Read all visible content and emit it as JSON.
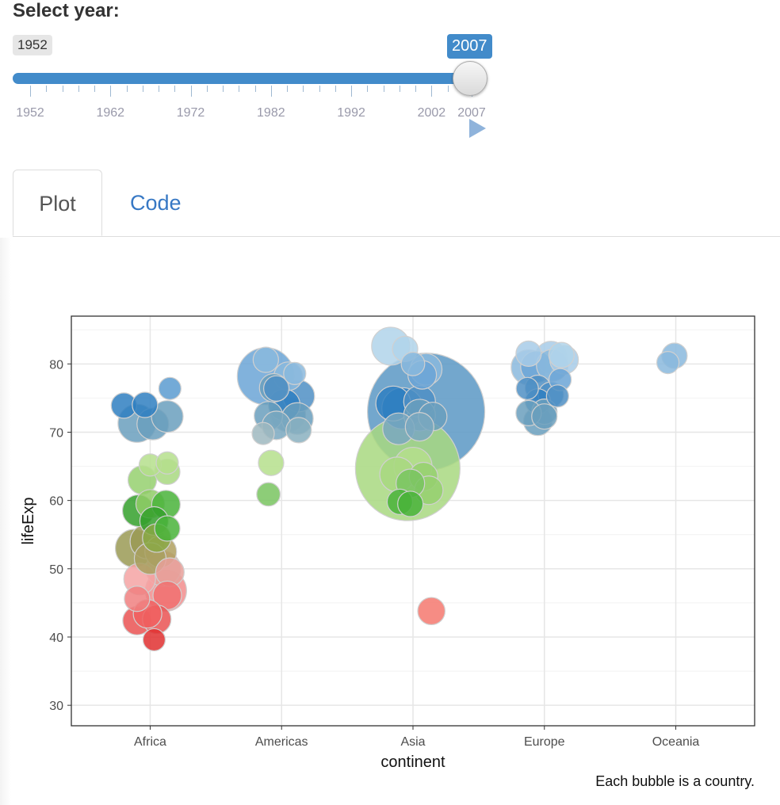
{
  "header": {
    "title": "Select year:"
  },
  "slider": {
    "min_label": "1952",
    "value_label": "2007",
    "value": 2007,
    "min": 1952,
    "max": 2007,
    "tick_labels": [
      "1952",
      "1962",
      "1972",
      "1982",
      "1992",
      "2002",
      "2007"
    ],
    "accent_color": "#428bca",
    "play_icon": "play-icon"
  },
  "tabs": [
    {
      "label": "Plot",
      "active": true
    },
    {
      "label": "Code",
      "active": false
    }
  ],
  "caption": "Each bubble is a country.",
  "chart_data": {
    "type": "scatter",
    "title": "",
    "xlabel": "continent",
    "ylabel": "lifeExp",
    "categories": [
      "Africa",
      "Americas",
      "Asia",
      "Europe",
      "Oceania"
    ],
    "ylim": [
      27,
      87
    ],
    "yticks": [
      30,
      40,
      50,
      60,
      70,
      80
    ],
    "grid": true,
    "legend": "none",
    "points": [
      {
        "c": "Africa",
        "x": -0.2,
        "y": 73.9,
        "s": 0.35,
        "col": "#2f7fc1"
      },
      {
        "c": "Africa",
        "x": -0.04,
        "y": 74,
        "s": 0.35,
        "col": "#2f7fc1"
      },
      {
        "c": "Africa",
        "x": 0.15,
        "y": 76.4,
        "s": 0.3,
        "col": "#5a9bd0"
      },
      {
        "c": "Africa",
        "x": -0.1,
        "y": 71.3,
        "s": 0.55,
        "col": "#6a9fbd"
      },
      {
        "c": "Africa",
        "x": 0.02,
        "y": 71.2,
        "s": 0.45,
        "col": "#6a9fbd"
      },
      {
        "c": "Africa",
        "x": 0.13,
        "y": 72.3,
        "s": 0.45,
        "col": "#6a9fbd"
      },
      {
        "c": "Africa",
        "x": 0,
        "y": 65.2,
        "s": 0.3,
        "col": "#b5df8c"
      },
      {
        "c": "Africa",
        "x": 0.13,
        "y": 65.5,
        "s": 0.3,
        "col": "#b5df8c"
      },
      {
        "c": "Africa",
        "x": -0.06,
        "y": 63,
        "s": 0.4,
        "col": "#95d06e"
      },
      {
        "c": "Africa",
        "x": 0.13,
        "y": 64.2,
        "s": 0.35,
        "col": "#a8d880"
      },
      {
        "c": "Africa",
        "x": 0.0,
        "y": 59.5,
        "s": 0.4,
        "col": "#8fcc66"
      },
      {
        "c": "Africa",
        "x": 0.12,
        "y": 59.4,
        "s": 0.4,
        "col": "#49b33a"
      },
      {
        "c": "Africa",
        "x": -0.09,
        "y": 58.5,
        "s": 0.45,
        "col": "#34a02c"
      },
      {
        "c": "Africa",
        "x": 0.03,
        "y": 57,
        "s": 0.4,
        "col": "#34a02c"
      },
      {
        "c": "Africa",
        "x": 0.13,
        "y": 55.9,
        "s": 0.35,
        "col": "#49b33a"
      },
      {
        "c": "Africa",
        "x": -0.12,
        "y": 53,
        "s": 0.55,
        "col": "#9a9a55"
      },
      {
        "c": "Africa",
        "x": -0.02,
        "y": 54,
        "s": 0.5,
        "col": "#9a9a55"
      },
      {
        "c": "Africa",
        "x": 0.05,
        "y": 54.5,
        "s": 0.4,
        "col": "#8aa845"
      },
      {
        "c": "Africa",
        "x": 0.08,
        "y": 52.5,
        "s": 0.45,
        "col": "#b0a060"
      },
      {
        "c": "Africa",
        "x": 0.1,
        "y": 50,
        "s": 0.5,
        "col": "#e8a09a"
      },
      {
        "c": "Africa",
        "x": 0.15,
        "y": 49.5,
        "s": 0.4,
        "col": "#e8a09a"
      },
      {
        "c": "Africa",
        "x": -0.08,
        "y": 48.5,
        "s": 0.45,
        "col": "#f4a3a3"
      },
      {
        "c": "Africa",
        "x": 0.0,
        "y": 51.5,
        "s": 0.45,
        "col": "#a8a060"
      },
      {
        "c": "Africa",
        "x": 0.12,
        "y": 46.8,
        "s": 0.6,
        "col": "#f28d8d"
      },
      {
        "c": "Africa",
        "x": -0.1,
        "y": 45.6,
        "s": 0.35,
        "col": "#f08080"
      },
      {
        "c": "Africa",
        "x": 0.13,
        "y": 46.1,
        "s": 0.4,
        "col": "#f07070"
      },
      {
        "c": "Africa",
        "x": -0.1,
        "y": 42.4,
        "s": 0.4,
        "col": "#ea5252"
      },
      {
        "c": "Africa",
        "x": 0.05,
        "y": 42.6,
        "s": 0.4,
        "col": "#ea5252"
      },
      {
        "c": "Africa",
        "x": -0.02,
        "y": 43.4,
        "s": 0.4,
        "col": "#f06060"
      },
      {
        "c": "Africa",
        "x": 0.03,
        "y": 39.6,
        "s": 0.3,
        "col": "#e03030"
      },
      {
        "c": "Americas",
        "x": -0.12,
        "y": 80.6,
        "s": 0.35,
        "col": "#8ab8dd"
      },
      {
        "c": "Americas",
        "x": -0.12,
        "y": 78.2,
        "s": 0.85,
        "col": "#6ba5d6"
      },
      {
        "c": "Americas",
        "x": 0.05,
        "y": 78.2,
        "s": 0.4,
        "col": "#8ab8dd"
      },
      {
        "c": "Americas",
        "x": 0.1,
        "y": 78.6,
        "s": 0.3,
        "col": "#8ab8dd"
      },
      {
        "c": "Americas",
        "x": -0.06,
        "y": 76.5,
        "s": 0.4,
        "col": "#6a9fbd"
      },
      {
        "c": "Americas",
        "x": 0.13,
        "y": 75.3,
        "s": 0.45,
        "col": "#4f8fc4"
      },
      {
        "c": "Americas",
        "x": -0.04,
        "y": 76.4,
        "s": 0.35,
        "col": "#4f8fc4"
      },
      {
        "c": "Americas",
        "x": 0.02,
        "y": 74,
        "s": 0.45,
        "col": "#2f7fc1"
      },
      {
        "c": "Americas",
        "x": -0.1,
        "y": 72.4,
        "s": 0.4,
        "col": "#6a9fbd"
      },
      {
        "c": "Americas",
        "x": 0.05,
        "y": 72.6,
        "s": 0.5,
        "col": "#6a9fbd"
      },
      {
        "c": "Americas",
        "x": 0.12,
        "y": 72,
        "s": 0.45,
        "col": "#6a9fbd"
      },
      {
        "c": "Americas",
        "x": -0.04,
        "y": 71,
        "s": 0.4,
        "col": "#7aa8c0"
      },
      {
        "c": "Americas",
        "x": 0.13,
        "y": 70.3,
        "s": 0.35,
        "col": "#8ab0bf"
      },
      {
        "c": "Americas",
        "x": -0.14,
        "y": 69.8,
        "s": 0.3,
        "col": "#9fb8bf"
      },
      {
        "c": "Americas",
        "x": -0.08,
        "y": 65.5,
        "s": 0.35,
        "col": "#b5df8c"
      },
      {
        "c": "Americas",
        "x": -0.1,
        "y": 60.9,
        "s": 0.32,
        "col": "#79c460"
      },
      {
        "c": "Asia",
        "x": -0.17,
        "y": 82.6,
        "s": 0.55,
        "col": "#b0d4ea"
      },
      {
        "c": "Asia",
        "x": -0.06,
        "y": 82.2,
        "s": 0.35,
        "col": "#b0d4ea"
      },
      {
        "c": "Asia",
        "x": 0.0,
        "y": 80,
        "s": 0.32,
        "col": "#8ab8dd"
      },
      {
        "c": "Asia",
        "x": 0.1,
        "y": 79.2,
        "s": 0.45,
        "col": "#8ab8dd"
      },
      {
        "c": "Asia",
        "x": 0.07,
        "y": 78.4,
        "s": 0.4,
        "col": "#6ba5d6"
      },
      {
        "c": "Asia",
        "x": 0.1,
        "y": 73,
        "s": 1.8,
        "col": "#5b98c4"
      },
      {
        "c": "Asia",
        "x": -0.15,
        "y": 74.2,
        "s": 0.5,
        "col": "#2f7fc1"
      },
      {
        "c": "Asia",
        "x": -0.08,
        "y": 73.5,
        "s": 0.6,
        "col": "#2f7fc1"
      },
      {
        "c": "Asia",
        "x": 0.05,
        "y": 74.5,
        "s": 0.45,
        "col": "#4f8fc4"
      },
      {
        "c": "Asia",
        "x": 0.05,
        "y": 72.5,
        "s": 0.45,
        "col": "#6a9fbd"
      },
      {
        "c": "Asia",
        "x": 0.15,
        "y": 72.3,
        "s": 0.4,
        "col": "#6a9fbd"
      },
      {
        "c": "Asia",
        "x": 0.05,
        "y": 70.8,
        "s": 0.4,
        "col": "#7aa8c0"
      },
      {
        "c": "Asia",
        "x": -0.11,
        "y": 70.5,
        "s": 0.45,
        "col": "#7aa8c0"
      },
      {
        "c": "Asia",
        "x": 0.0,
        "y": 65,
        "s": 0.55,
        "col": "#b5df8c"
      },
      {
        "c": "Asia",
        "x": -0.04,
        "y": 64.7,
        "s": 1.6,
        "col": "#a8d880"
      },
      {
        "c": "Asia",
        "x": -0.12,
        "y": 63.8,
        "s": 0.5,
        "col": "#a8d880"
      },
      {
        "c": "Asia",
        "x": 0.08,
        "y": 63.5,
        "s": 0.4,
        "col": "#95d06e"
      },
      {
        "c": "Asia",
        "x": 0.12,
        "y": 61.5,
        "s": 0.4,
        "col": "#95d06e"
      },
      {
        "c": "Asia",
        "x": -0.02,
        "y": 62.5,
        "s": 0.4,
        "col": "#79c460"
      },
      {
        "c": "Asia",
        "x": -0.1,
        "y": 59.8,
        "s": 0.35,
        "col": "#49b33a"
      },
      {
        "c": "Asia",
        "x": -0.02,
        "y": 59.5,
        "s": 0.35,
        "col": "#49b33a"
      },
      {
        "c": "Asia",
        "x": 0.14,
        "y": 43.8,
        "s": 0.38,
        "col": "#f4786e"
      },
      {
        "c": "Europe",
        "x": -0.12,
        "y": 81.5,
        "s": 0.35,
        "col": "#a7cbe7"
      },
      {
        "c": "Europe",
        "x": 0.05,
        "y": 81,
        "s": 0.45,
        "col": "#a7cbe7"
      },
      {
        "c": "Europe",
        "x": 0.13,
        "y": 81.3,
        "s": 0.35,
        "col": "#b0d4ea"
      },
      {
        "c": "Europe",
        "x": 0.15,
        "y": 80.6,
        "s": 0.4,
        "col": "#a7cbe7"
      },
      {
        "c": "Europe",
        "x": -0.12,
        "y": 79.5,
        "s": 0.5,
        "col": "#8ab8dd"
      },
      {
        "c": "Europe",
        "x": -0.06,
        "y": 79.6,
        "s": 0.45,
        "col": "#6ba5d6"
      },
      {
        "c": "Europe",
        "x": 0.06,
        "y": 79.8,
        "s": 0.45,
        "col": "#8ab8dd"
      },
      {
        "c": "Europe",
        "x": 0.12,
        "y": 77.7,
        "s": 0.3,
        "col": "#6ba5d6"
      },
      {
        "c": "Europe",
        "x": -0.13,
        "y": 76.4,
        "s": 0.3,
        "col": "#4f8fc4"
      },
      {
        "c": "Europe",
        "x": -0.05,
        "y": 76.5,
        "s": 0.35,
        "col": "#4f8fc4"
      },
      {
        "c": "Europe",
        "x": 0.05,
        "y": 75.5,
        "s": 0.35,
        "col": "#4f8fc4"
      },
      {
        "c": "Europe",
        "x": 0.1,
        "y": 75.3,
        "s": 0.3,
        "col": "#4f8fc4"
      },
      {
        "c": "Europe",
        "x": -0.05,
        "y": 74.5,
        "s": 0.35,
        "col": "#2f7fc1"
      },
      {
        "c": "Europe",
        "x": 0.0,
        "y": 73,
        "s": 0.35,
        "col": "#6a9fbd"
      },
      {
        "c": "Europe",
        "x": -0.12,
        "y": 72.8,
        "s": 0.35,
        "col": "#6a9fbd"
      },
      {
        "c": "Europe",
        "x": -0.05,
        "y": 71.6,
        "s": 0.4,
        "col": "#6a9fbd"
      },
      {
        "c": "Europe",
        "x": 0.0,
        "y": 72.3,
        "s": 0.35,
        "col": "#6a9fbd"
      },
      {
        "c": "Oceania",
        "x": -0.06,
        "y": 80.2,
        "s": 0.3,
        "col": "#8ab8dd"
      },
      {
        "c": "Oceania",
        "x": -0.01,
        "y": 81.2,
        "s": 0.35,
        "col": "#8ab8dd"
      }
    ]
  }
}
